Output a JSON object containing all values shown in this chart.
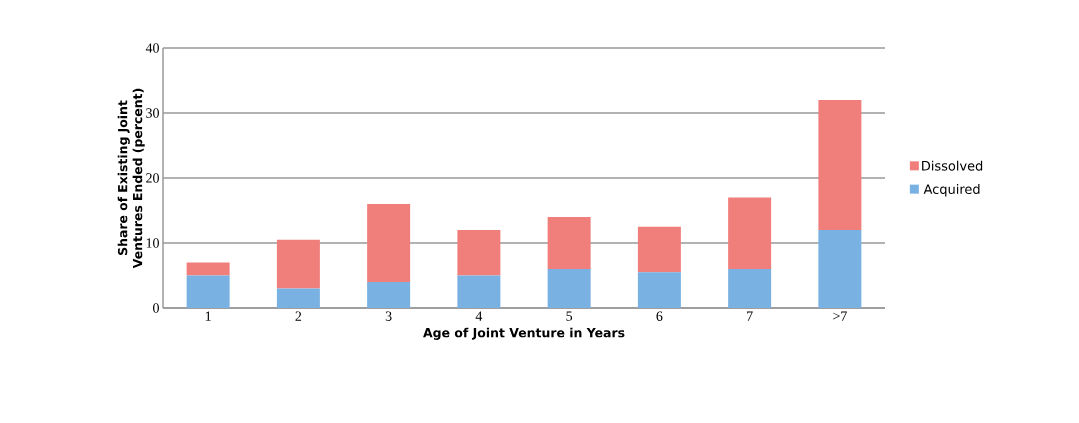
{
  "chart_data": {
    "type": "bar",
    "stacked": true,
    "xlabel": "Age of Joint Venture in Years",
    "ylabel": "Share of Existing Joint Ventures Ended (percent)",
    "categories": [
      "1",
      "2",
      "3",
      "4",
      "5",
      "6",
      "7",
      ">7"
    ],
    "series": [
      {
        "name": "Acquired",
        "color": "#7ab1e3",
        "values": [
          5,
          3,
          4,
          5,
          6,
          5.5,
          6,
          12
        ]
      },
      {
        "name": "Dissolved",
        "color": "#f07f7c",
        "values": [
          2,
          7.5,
          12,
          7,
          8,
          7,
          11,
          20
        ]
      }
    ],
    "ylim": [
      0,
      40
    ],
    "yticks": [
      0,
      10,
      20,
      30,
      40
    ],
    "grid": "y",
    "legend": "right"
  }
}
